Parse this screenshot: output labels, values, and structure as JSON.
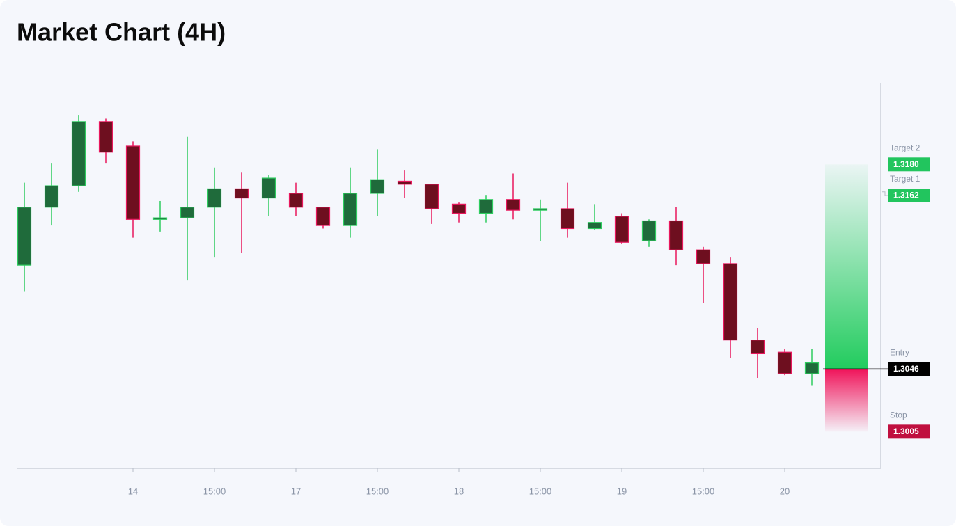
{
  "chart_data": {
    "type": "candlestick",
    "title": "Market Chart (4H)",
    "categories": [
      null,
      null,
      null,
      null,
      "14",
      null,
      null,
      "15:00",
      null,
      null,
      "17",
      null,
      null,
      "15:00",
      null,
      null,
      "18",
      null,
      null,
      "15:00",
      null,
      null,
      "19",
      null,
      null,
      "15:00",
      null,
      null,
      "20",
      null
    ],
    "open": [
      1.3114,
      1.3152,
      1.3166,
      1.3208,
      1.3192,
      1.3144,
      1.3145,
      1.3152,
      1.3164,
      1.3158,
      1.3161,
      1.3152,
      1.314,
      1.3161,
      1.3169,
      1.3167,
      1.3154,
      1.3148,
      1.3157,
      1.315,
      1.3151,
      1.3138,
      1.3146,
      1.313,
      1.3143,
      1.3124,
      1.3115,
      1.3065,
      1.3057,
      1.3043
    ],
    "high": [
      1.3168,
      1.3181,
      1.3212,
      1.321,
      1.3195,
      1.3156,
      1.3198,
      1.3178,
      1.3175,
      1.3173,
      1.3168,
      1.3152,
      1.3178,
      1.319,
      1.3176,
      1.3167,
      1.3155,
      1.316,
      1.3174,
      1.3157,
      1.3168,
      1.3154,
      1.3148,
      1.3144,
      1.3152,
      1.3126,
      1.3119,
      1.3073,
      1.3059,
      1.3059
    ],
    "low": [
      1.3097,
      1.314,
      1.3162,
      1.3181,
      1.3132,
      1.3136,
      1.3104,
      1.3119,
      1.3122,
      1.3146,
      1.3146,
      1.3138,
      1.3132,
      1.3146,
      1.3158,
      1.3141,
      1.3142,
      1.3142,
      1.3144,
      1.313,
      1.3132,
      1.3137,
      1.3128,
      1.3126,
      1.3114,
      1.3089,
      1.3053,
      1.304,
      1.3042,
      1.3035
    ],
    "close": [
      1.3152,
      1.3166,
      1.3208,
      1.3188,
      1.3144,
      1.3145,
      1.3152,
      1.3164,
      1.3158,
      1.3171,
      1.3152,
      1.314,
      1.3161,
      1.317,
      1.3167,
      1.3151,
      1.3148,
      1.3157,
      1.315,
      1.3151,
      1.3138,
      1.3142,
      1.3129,
      1.3143,
      1.3124,
      1.3115,
      1.3065,
      1.3056,
      1.3043,
      1.305
    ],
    "up_color": "#1f6b3b",
    "up_edge": "#2ecc5f",
    "down_color": "#6e0f1f",
    "down_edge": "#e8175d",
    "ylim": [
      1.2981,
      1.3233
    ],
    "levels": {
      "names": [
        "Target 2",
        "Target 1",
        "Entry",
        "Stop"
      ],
      "values": [
        1.318,
        1.3162,
        1.3046,
        1.3005
      ],
      "value_labels": [
        "1.3180",
        "1.3162",
        "1.3046",
        "1.3005"
      ],
      "colors": [
        "#22c55e",
        "#22c55e",
        "#000000",
        "#c0103f"
      ]
    }
  }
}
